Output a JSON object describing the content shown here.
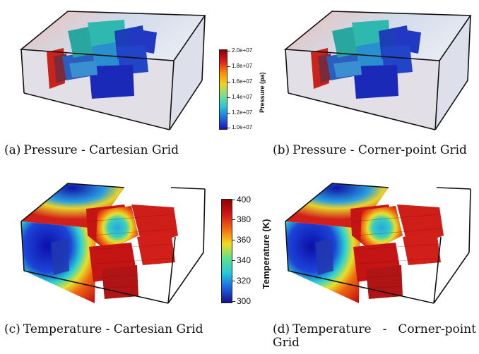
{
  "panels": [
    {
      "tag": "(a)",
      "caption": "Pressure - Cartesian Grid"
    },
    {
      "tag": "(b)",
      "caption": "Pressure - Corner-point Grid"
    },
    {
      "tag": "(c)",
      "caption": "Temperature - Cartesian Grid"
    },
    {
      "tag": "(d)",
      "caption": "Temperature - Corner-point Grid"
    }
  ],
  "pressure_colorbar": {
    "title": "Pressure (pa)",
    "ticks": [
      "2.0e+07",
      "1.8e+07",
      "1.6e+07",
      "1.4e+07",
      "1.2e+07",
      "1.0e+07"
    ]
  },
  "temperature_colorbar": {
    "title": "Temperature (K)",
    "ticks": [
      "400",
      "380",
      "360",
      "340",
      "320",
      "300"
    ]
  },
  "colors": {
    "low": "#1a0fd0",
    "mid": "#25d6c8",
    "high": "#b50d0d",
    "fracture_blue": "#1c3fb8",
    "fracture_teal": "#2aa6a0",
    "fracture_red": "#c9231b"
  }
}
